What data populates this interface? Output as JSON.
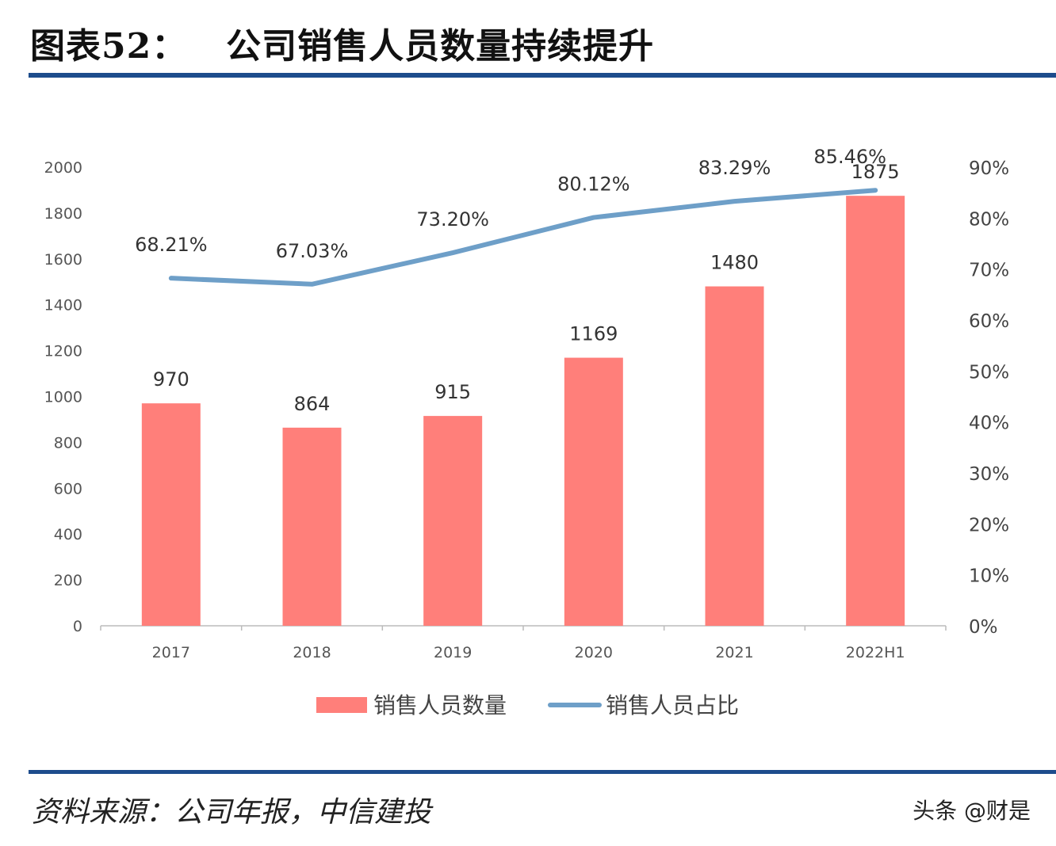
{
  "header": {
    "title": "图表52：   公司销售人员数量持续提升"
  },
  "footer": {
    "source": "资料来源：公司年报，中信建投",
    "watermark": "头条 @财是"
  },
  "chart_data": {
    "type": "bar+line",
    "categories": [
      "2017",
      "2018",
      "2019",
      "2020",
      "2021",
      "2022H1"
    ],
    "series": [
      {
        "name": "销售人员数量",
        "type": "bar",
        "axis": "left",
        "values": [
          970,
          864,
          915,
          1169,
          1480,
          1875
        ],
        "labels": [
          "970",
          "864",
          "915",
          "1169",
          "1480",
          "1875"
        ],
        "color": "#ff7f7a"
      },
      {
        "name": "销售人员占比",
        "type": "line",
        "axis": "right",
        "values": [
          68.21,
          67.03,
          73.2,
          80.12,
          83.29,
          85.46
        ],
        "labels": [
          "68.21%",
          "67.03%",
          "73.20%",
          "80.12%",
          "83.29%",
          "85.46%"
        ],
        "color": "#6e9fc8"
      }
    ],
    "y_left": {
      "range": [
        0,
        2000
      ],
      "ticks": [
        "0",
        "200",
        "400",
        "600",
        "800",
        "1000",
        "1200",
        "1400",
        "1600",
        "1800",
        "2000"
      ]
    },
    "y_right": {
      "range": [
        0,
        90
      ],
      "ticks": [
        "0%",
        "10%",
        "20%",
        "30%",
        "40%",
        "50%",
        "60%",
        "70%",
        "80%",
        "90%"
      ]
    },
    "grid": false,
    "legend": "bottom"
  }
}
